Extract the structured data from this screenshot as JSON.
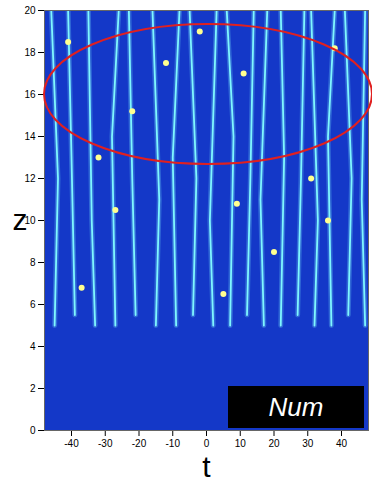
{
  "chart_data": {
    "type": "heatmap",
    "xlabel": "t",
    "ylabel": "z",
    "annotation": "Num",
    "xlim": [
      -48,
      48
    ],
    "ylim": [
      0,
      20
    ],
    "xticks": [
      -40,
      -30,
      -20,
      -10,
      0,
      10,
      20,
      30,
      40
    ],
    "yticks": [
      0,
      2,
      4,
      6,
      8,
      10,
      12,
      14,
      16,
      18,
      20
    ],
    "color": "#7ff6ff",
    "filaments": [
      {
        "t": [
          -45,
          -44,
          -46
        ],
        "z": [
          5,
          12,
          20
        ]
      },
      {
        "t": [
          -39,
          -40,
          -41
        ],
        "z": [
          5.5,
          13,
          20
        ]
      },
      {
        "t": [
          -33,
          -34,
          -35
        ],
        "z": [
          5,
          10,
          20
        ]
      },
      {
        "t": [
          -27,
          -28,
          -26
        ],
        "z": [
          5,
          14,
          20
        ]
      },
      {
        "t": [
          -21,
          -22,
          -23
        ],
        "z": [
          5.5,
          12,
          20
        ]
      },
      {
        "t": [
          -15,
          -14,
          -16
        ],
        "z": [
          5,
          11,
          20
        ]
      },
      {
        "t": [
          -9,
          -10,
          -8
        ],
        "z": [
          5,
          13,
          20
        ]
      },
      {
        "t": [
          -4,
          -3,
          -5
        ],
        "z": [
          5.5,
          12,
          20
        ]
      },
      {
        "t": [
          2,
          1,
          3
        ],
        "z": [
          5,
          10,
          20
        ]
      },
      {
        "t": [
          7,
          8,
          6
        ],
        "z": [
          5,
          14,
          20
        ]
      },
      {
        "t": [
          12,
          13,
          14
        ],
        "z": [
          5.5,
          12,
          20
        ]
      },
      {
        "t": [
          17,
          16,
          18
        ],
        "z": [
          5,
          11,
          20
        ]
      },
      {
        "t": [
          22,
          23,
          22
        ],
        "z": [
          5,
          13,
          20
        ]
      },
      {
        "t": [
          27,
          28,
          29
        ],
        "z": [
          5.5,
          12,
          20
        ]
      },
      {
        "t": [
          32,
          33,
          31
        ],
        "z": [
          5,
          10,
          20
        ]
      },
      {
        "t": [
          37,
          36,
          38
        ],
        "z": [
          5,
          14,
          20
        ]
      },
      {
        "t": [
          42,
          43,
          41
        ],
        "z": [
          5.5,
          12,
          20
        ]
      },
      {
        "t": [
          47,
          46,
          47
        ],
        "z": [
          5,
          11,
          20
        ]
      }
    ],
    "peaks": {
      "t": [
        -37,
        -41,
        -32,
        -27,
        9,
        11,
        31,
        -12,
        5,
        38,
        -22,
        20,
        -2,
        36
      ],
      "z": [
        6.8,
        18.5,
        13,
        10.5,
        10.8,
        17,
        12,
        17.5,
        6.5,
        18.2,
        15.2,
        8.5,
        19,
        10
      ]
    }
  }
}
